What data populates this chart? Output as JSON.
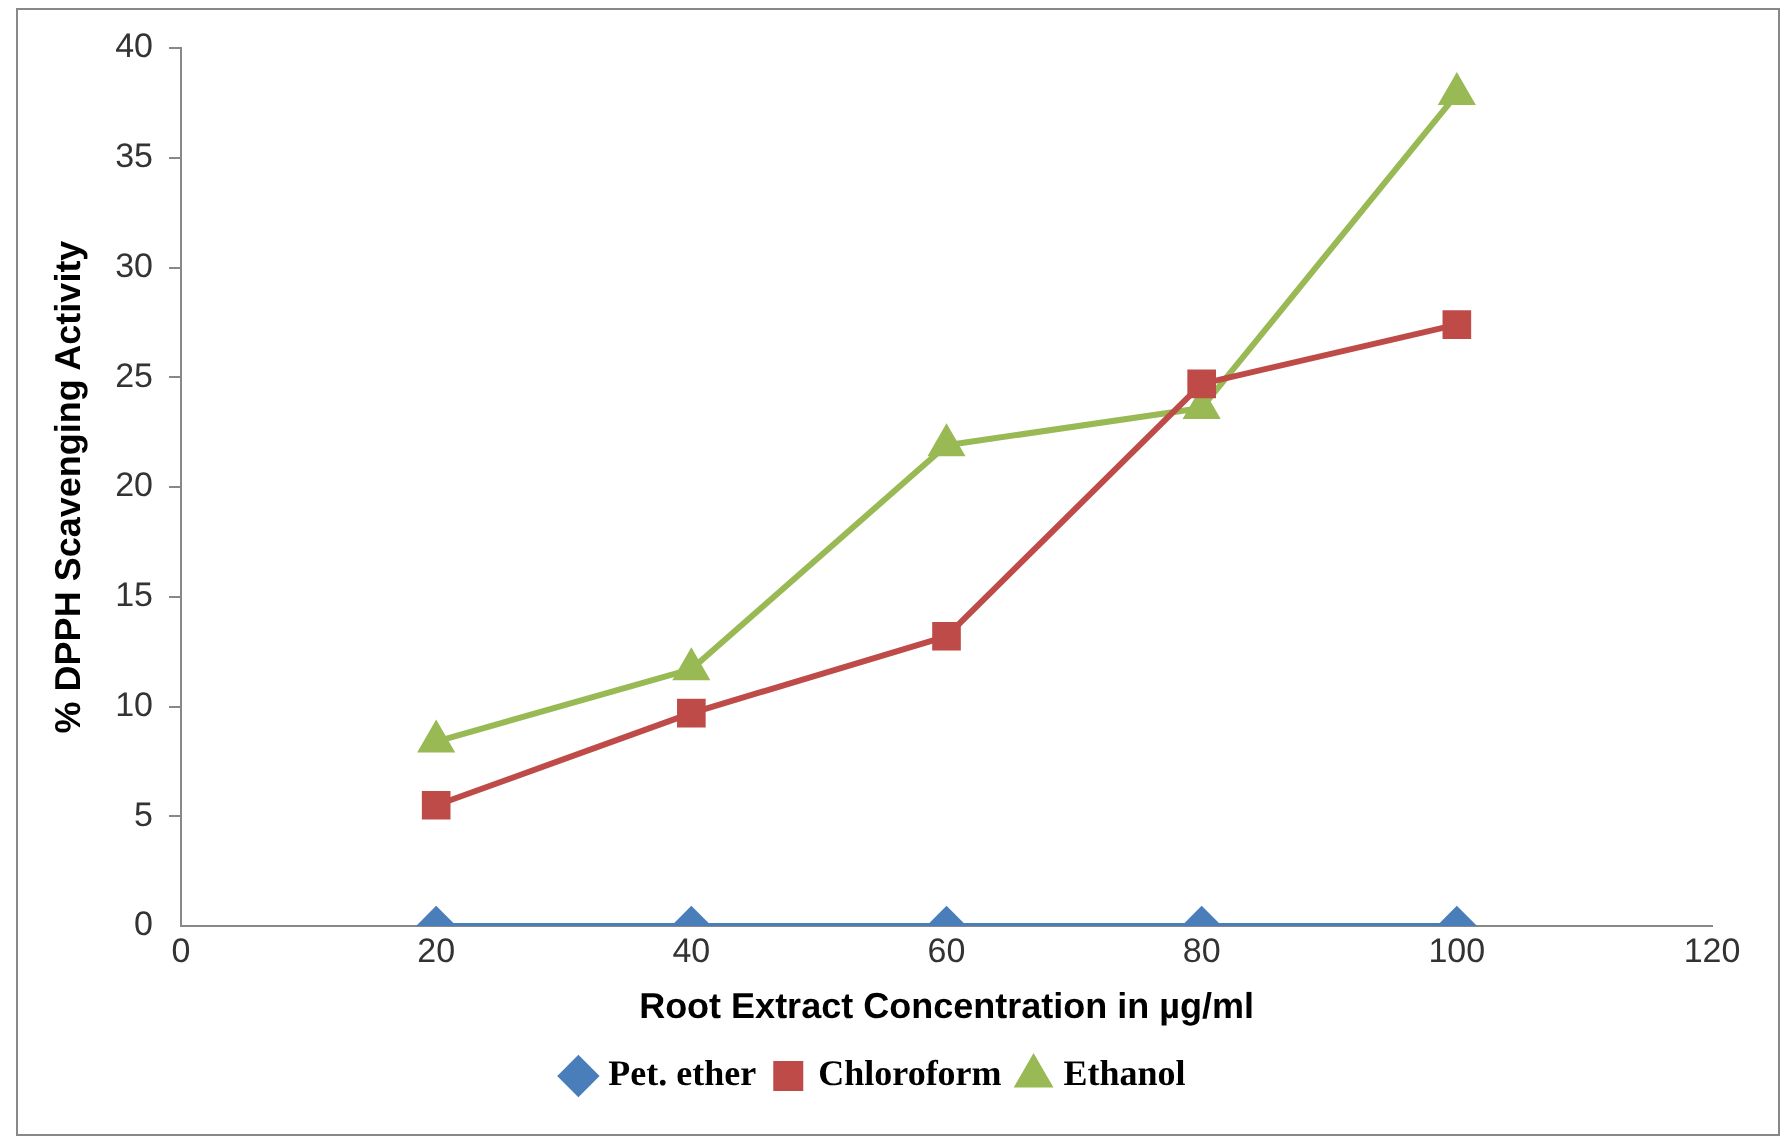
{
  "chart_data": {
    "type": "line",
    "xlabel": "Root Extract Concentration in µg/ml",
    "ylabel": "% DPPH Scavenging Activity",
    "x": [
      20,
      40,
      60,
      80,
      100
    ],
    "series": [
      {
        "name": "Pet. ether",
        "color": "#4a7ebb",
        "marker": "diamond",
        "values": [
          0,
          0,
          0,
          0,
          0
        ]
      },
      {
        "name": "Chloroform",
        "color": "#be4b48",
        "marker": "square",
        "values": [
          5.5,
          9.7,
          13.2,
          24.7,
          27.4
        ]
      },
      {
        "name": "Ethanol",
        "color": "#98b954",
        "marker": "triangle",
        "values": [
          8.4,
          11.7,
          21.9,
          23.6,
          37.9
        ]
      }
    ],
    "xlim": [
      0,
      120
    ],
    "xticks": [
      0,
      20,
      40,
      60,
      80,
      100,
      120
    ],
    "ylim": [
      0,
      40
    ],
    "yticks": [
      0,
      5,
      10,
      15,
      20,
      25,
      30,
      35,
      40
    ],
    "grid": false,
    "legend": "bottom",
    "line_style": "solid"
  }
}
